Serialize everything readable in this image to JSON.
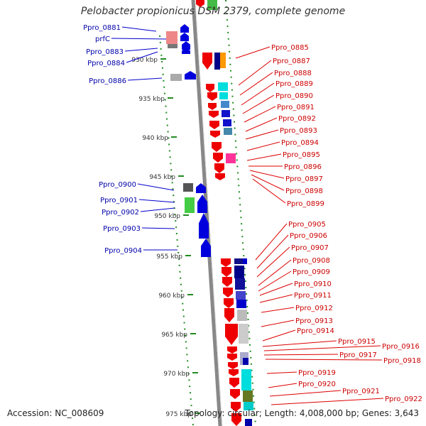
{
  "title": "Pelobacter propionicus DSM 2379, complete genome",
  "accession": "Accession: NC_008609",
  "topology": "Topology: circular; Length: 4,008,000 bp; Genes: 3,643",
  "colors": {
    "forward": "#0000dd",
    "reverse": "#ee0000",
    "ruler": "#228b22",
    "axis": "#888888"
  },
  "ruler_ticks": [
    {
      "label": "930 kbp"
    },
    {
      "label": "935 kbp"
    },
    {
      "label": "940 kbp"
    },
    {
      "label": "945 kbp"
    },
    {
      "label": "950 kbp"
    },
    {
      "label": "955 kbp"
    },
    {
      "label": "960 kbp"
    },
    {
      "label": "965 kbp"
    },
    {
      "label": "970 kbp"
    },
    {
      "label": "975 kbp"
    }
  ],
  "left_genes": [
    "Ppro_0881",
    "prfC",
    "Ppro_0883",
    "Ppro_0884",
    "Ppro_0886",
    "Ppro_0900",
    "Ppro_0901",
    "Ppro_0902",
    "Ppro_0903",
    "Ppro_0904"
  ],
  "right_genes": [
    "Ppro_0885",
    "Ppro_0887",
    "Ppro_0888",
    "Ppro_0889",
    "Ppro_0890",
    "Ppro_0891",
    "Ppro_0892",
    "Ppro_0893",
    "Ppro_0894",
    "Ppro_0895",
    "Ppro_0896",
    "Ppro_0897",
    "Ppro_0898",
    "Ppro_0899",
    "Ppro_0905",
    "Ppro_0906",
    "Ppro_0907",
    "Ppro_0908",
    "Ppro_0909",
    "Ppro_0910",
    "Ppro_0911",
    "Ppro_0912",
    "Ppro_0913",
    "Ppro_0914",
    "Ppro_0915",
    "Ppro_0916",
    "Ppro_0917",
    "Ppro_0918",
    "Ppro_0919",
    "Ppro_0920",
    "Ppro_0921",
    "Ppro_0922"
  ]
}
